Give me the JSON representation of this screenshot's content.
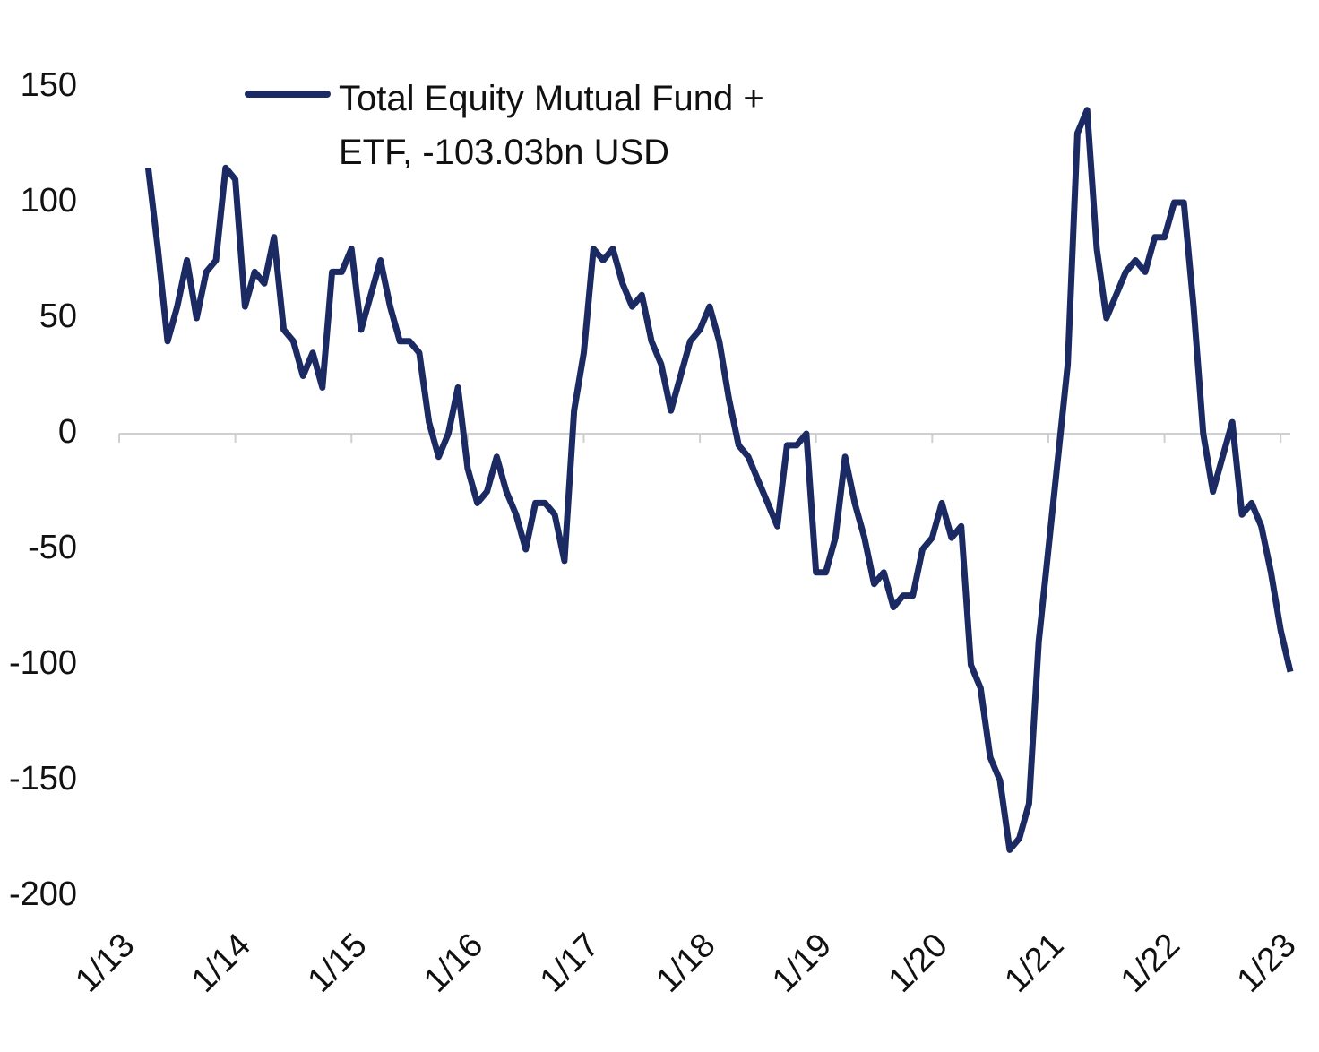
{
  "chart_data": {
    "type": "line",
    "x": [
      "2013-04",
      "2013-05",
      "2013-06",
      "2013-07",
      "2013-08",
      "2013-09",
      "2013-10",
      "2013-11",
      "2013-12",
      "2014-01",
      "2014-02",
      "2014-03",
      "2014-04",
      "2014-05",
      "2014-06",
      "2014-07",
      "2014-08",
      "2014-09",
      "2014-10",
      "2014-11",
      "2014-12",
      "2015-01",
      "2015-02",
      "2015-03",
      "2015-04",
      "2015-05",
      "2015-06",
      "2015-07",
      "2015-08",
      "2015-09",
      "2015-10",
      "2015-11",
      "2015-12",
      "2016-01",
      "2016-02",
      "2016-03",
      "2016-04",
      "2016-05",
      "2016-06",
      "2016-07",
      "2016-08",
      "2016-09",
      "2016-10",
      "2016-11",
      "2016-12",
      "2017-01",
      "2017-02",
      "2017-03",
      "2017-04",
      "2017-05",
      "2017-06",
      "2017-07",
      "2017-08",
      "2017-09",
      "2017-10",
      "2017-11",
      "2017-12",
      "2018-01",
      "2018-02",
      "2018-03",
      "2018-04",
      "2018-05",
      "2018-06",
      "2018-07",
      "2018-08",
      "2018-09",
      "2018-10",
      "2018-11",
      "2018-12",
      "2019-01",
      "2019-02",
      "2019-03",
      "2019-04",
      "2019-05",
      "2019-06",
      "2019-07",
      "2019-08",
      "2019-09",
      "2019-10",
      "2019-11",
      "2019-12",
      "2020-01",
      "2020-02",
      "2020-03",
      "2020-04",
      "2020-05",
      "2020-06",
      "2020-07",
      "2020-08",
      "2020-09",
      "2020-10",
      "2020-11",
      "2020-12",
      "2021-01",
      "2021-02",
      "2021-03",
      "2021-04",
      "2021-05",
      "2021-06",
      "2021-07",
      "2021-08",
      "2021-09",
      "2021-10",
      "2021-11",
      "2021-12",
      "2022-01",
      "2022-02",
      "2022-03",
      "2022-04",
      "2022-05",
      "2022-06",
      "2022-07",
      "2022-08",
      "2022-09",
      "2022-10",
      "2022-11",
      "2022-12",
      "2023-01",
      "2023-02"
    ],
    "series": [
      {
        "name": "Total Equity Mutual Fund + ETF, -103.03bn USD",
        "color": "#1b2a63",
        "values": [
          115,
          80,
          40,
          55,
          75,
          50,
          70,
          75,
          115,
          110,
          55,
          70,
          65,
          85,
          45,
          40,
          25,
          35,
          20,
          70,
          70,
          80,
          45,
          60,
          75,
          55,
          40,
          40,
          35,
          5,
          -10,
          0,
          20,
          -15,
          -30,
          -25,
          -10,
          -25,
          -35,
          -50,
          -30,
          -30,
          -35,
          -55,
          10,
          35,
          80,
          75,
          80,
          65,
          55,
          60,
          40,
          30,
          10,
          25,
          40,
          45,
          55,
          40,
          15,
          -5,
          -10,
          -20,
          -30,
          -40,
          -5,
          -5,
          0,
          -60,
          -60,
          -45,
          -10,
          -30,
          -45,
          -65,
          -60,
          -75,
          -70,
          -70,
          -50,
          -45,
          -30,
          -45,
          -40,
          -100,
          -110,
          -140,
          -150,
          -180,
          -175,
          -160,
          -90,
          -50,
          -10,
          30,
          130,
          140,
          80,
          50,
          60,
          70,
          75,
          70,
          85,
          85,
          100,
          100,
          55,
          0,
          -25,
          -10,
          5,
          -35,
          -30,
          -40,
          -60,
          -85,
          -103
        ]
      }
    ],
    "xlim": [
      "2013-01",
      "2023-02"
    ],
    "xticks": [
      {
        "value": "2013-01",
        "label": "1/13"
      },
      {
        "value": "2014-01",
        "label": "1/14"
      },
      {
        "value": "2015-01",
        "label": "1/15"
      },
      {
        "value": "2016-01",
        "label": "1/16"
      },
      {
        "value": "2017-01",
        "label": "1/17"
      },
      {
        "value": "2018-01",
        "label": "1/18"
      },
      {
        "value": "2019-01",
        "label": "1/19"
      },
      {
        "value": "2020-01",
        "label": "1/20"
      },
      {
        "value": "2021-01",
        "label": "1/21"
      },
      {
        "value": "2022-01",
        "label": "1/22"
      },
      {
        "value": "2023-01",
        "label": "1/23"
      }
    ],
    "ylim": [
      -200,
      150
    ],
    "yticks": [
      150,
      100,
      50,
      0,
      -50,
      -100,
      -150,
      -200
    ],
    "legend": "top-left"
  }
}
